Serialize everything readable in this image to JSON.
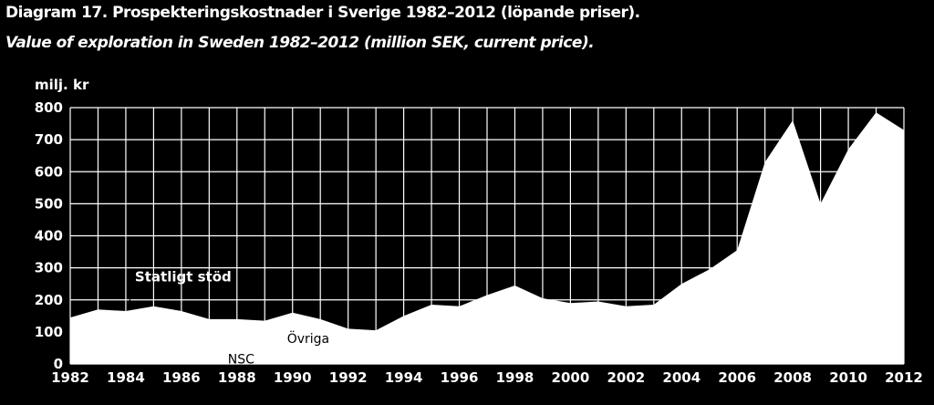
{
  "header": {
    "title": "Diagram 17. Prospekteringskostnader i Sverige 1982–2012 (löpande priser).",
    "subtitle": "Value of exploration in Sweden 1982–2012 (million SEK, current price)."
  },
  "chart_data": {
    "type": "area",
    "ylabel": "milj. kr",
    "xlabel": "",
    "ylim": [
      0,
      800
    ],
    "xlim": [
      1982,
      2012
    ],
    "yticks": [
      0,
      100,
      200,
      300,
      400,
      500,
      600,
      700,
      800
    ],
    "xticks": [
      1982,
      1984,
      1986,
      1988,
      1990,
      1992,
      1994,
      1996,
      1998,
      2000,
      2002,
      2004,
      2006,
      2008,
      2010,
      2012
    ],
    "grid": true,
    "colors": {
      "background": "#000000",
      "area": "#ffffff",
      "grid": "#ffffff"
    },
    "series": [
      {
        "x": [
          1982,
          1983,
          1984,
          1985,
          1986,
          1987,
          1988,
          1989,
          1990,
          1991,
          1992,
          1993,
          1994,
          1995,
          1996,
          1997,
          1998,
          1999,
          2000,
          2001,
          2002,
          2003,
          2004,
          2005,
          2006,
          2007,
          2008,
          2009,
          2010,
          2011,
          2012
        ],
        "values": [
          145,
          170,
          165,
          180,
          165,
          140,
          140,
          135,
          160,
          140,
          110,
          105,
          150,
          185,
          180,
          215,
          245,
          205,
          190,
          195,
          180,
          185,
          250,
          295,
          355,
          630,
          760,
          500,
          670,
          785,
          730
        ]
      }
    ],
    "annotations": [
      {
        "text": "Statligt stöd",
        "x": 1984
      },
      {
        "text": "Övriga",
        "x": 1990
      },
      {
        "text": "NSC",
        "x": 1988
      }
    ]
  }
}
